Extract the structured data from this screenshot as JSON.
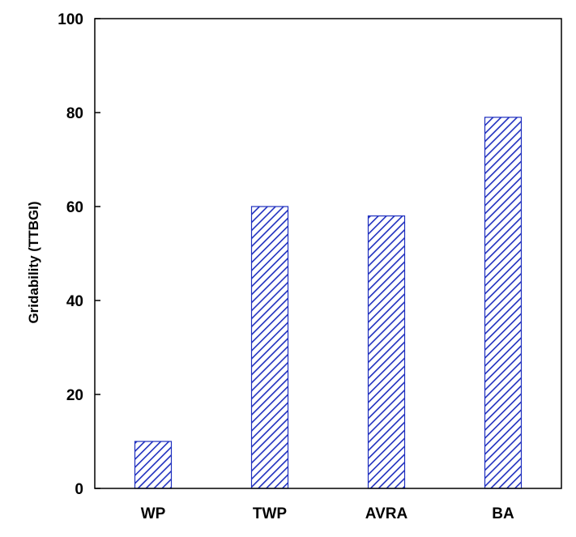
{
  "chart_data": {
    "type": "bar",
    "title": "",
    "xlabel": "",
    "ylabel": "Gridability (TTBGI)",
    "categories": [
      "WP",
      "TWP",
      "AVRA",
      "BA"
    ],
    "values": [
      10,
      60,
      58,
      79
    ],
    "ylim": [
      0,
      100
    ],
    "yticks": [
      0,
      20,
      40,
      60,
      80,
      100
    ],
    "grid": false,
    "legend": "none",
    "bar_fill": "diagonal-hatch",
    "colors": {
      "bar_hatch": "#1f2fbf",
      "bar_outline": "#1f2fbf",
      "axis": "#000000",
      "background": "#ffffff"
    }
  }
}
